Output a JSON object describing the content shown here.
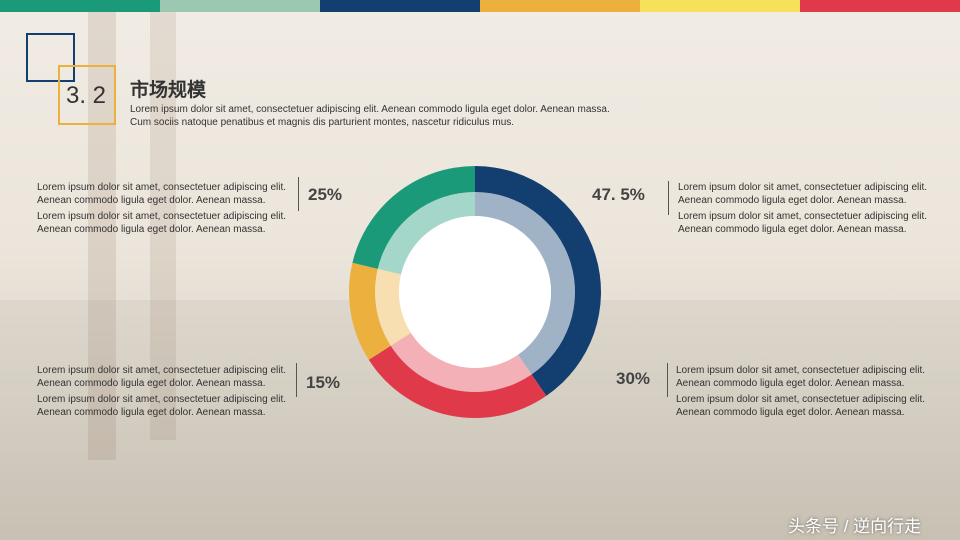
{
  "section_number": "3. 2",
  "intro": "Lorem ipsum dolor sit amet, consectetuer adipiscing elit. Aenean commodo ligula eget dolor. Aenean massa. Cum sociis natoque penatibus et magnis dis parturient montes, nascetur ridiculus mus.",
  "chart_data": {
    "type": "pie",
    "title": "市场规模",
    "values": [
      47.5,
      30,
      15,
      25
    ],
    "value_labels": [
      "47. 5%",
      "30%",
      "15%",
      "25%"
    ],
    "colors": [
      "#123f70",
      "#e0394a",
      "#ecb03f",
      "#1b9a7a"
    ]
  },
  "notes": [
    [
      "Lorem ipsum dolor sit amet, consectetuer adipiscing elit. Aenean commodo ligula eget dolor. Aenean massa.",
      "Lorem ipsum dolor sit amet, consectetuer adipiscing elit. Aenean commodo ligula eget dolor. Aenean massa."
    ],
    [
      "Lorem ipsum dolor sit amet, consectetuer adipiscing elit. Aenean commodo ligula eget dolor. Aenean massa.",
      "Lorem ipsum dolor sit amet, consectetuer adipiscing elit. Aenean commodo ligula eget dolor. Aenean massa."
    ],
    [
      "Lorem ipsum dolor sit amet, consectetuer adipiscing elit. Aenean commodo ligula eget dolor. Aenean massa.",
      "Lorem ipsum dolor sit amet, consectetuer adipiscing elit. Aenean commodo ligula eget dolor. Aenean massa."
    ],
    [
      "Lorem ipsum dolor sit amet, consectetuer adipiscing elit. Aenean commodo ligula eget dolor. Aenean massa.",
      "Lorem ipsum dolor sit amet, consectetuer adipiscing elit. Aenean commodo ligula eget dolor. Aenean massa."
    ]
  ],
  "watermark": "头条号 / 逆向行走"
}
